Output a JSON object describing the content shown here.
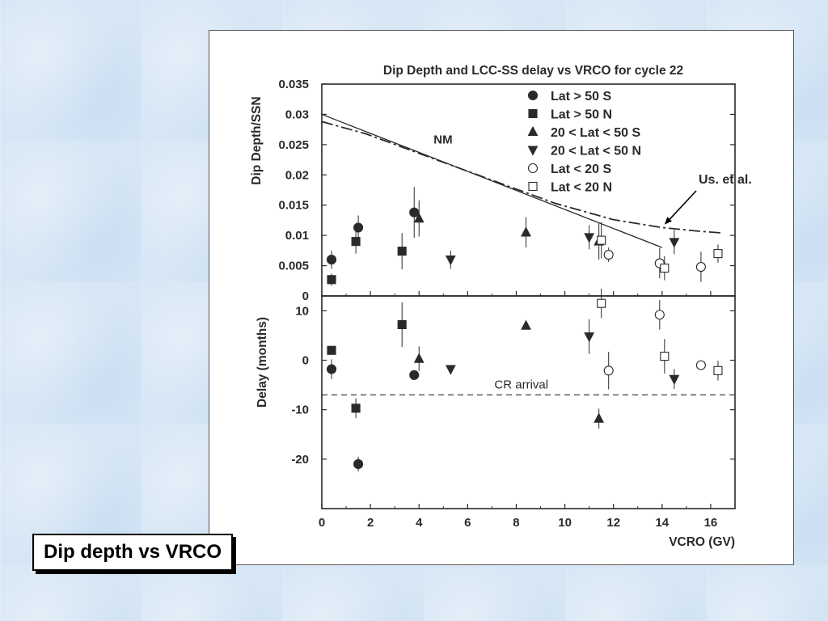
{
  "caption": "Dip depth vs VRCO",
  "colors": {
    "ink": "#2a2a2a",
    "background": "#d6e6f5"
  },
  "chart_data": {
    "type": "scatter",
    "title": "Dip Depth and LCC-SS delay vs VRCO for cycle 22",
    "xlabel": "VCRO (GV)",
    "xlim": [
      0,
      17
    ],
    "xticks": [
      "0",
      "2",
      "4",
      "6",
      "8",
      "10",
      "12",
      "14",
      "16"
    ],
    "top_panel": {
      "ylabel": "Dip Depth/SSN",
      "ylim": [
        0,
        0.035
      ],
      "yticks": [
        "0",
        "0.005",
        "0.01",
        "0.015",
        "0.02",
        "0.025",
        "0.03",
        "0.035"
      ],
      "legend_position": "top-right",
      "series": [
        {
          "name": "Lat > 50 S",
          "marker": "circle-filled",
          "points": [
            {
              "x": 0.4,
              "y": 0.006,
              "e": 0.0015
            },
            {
              "x": 1.5,
              "y": 0.0113,
              "e": 0.002
            },
            {
              "x": 3.8,
              "y": 0.0138,
              "e": 0.0042
            }
          ]
        },
        {
          "name": "Lat > 50 N",
          "marker": "square-filled",
          "points": [
            {
              "x": 0.4,
              "y": 0.0027,
              "e": 0.001
            },
            {
              "x": 1.4,
              "y": 0.009,
              "e": 0.002
            },
            {
              "x": 3.3,
              "y": 0.0074,
              "e": 0.003
            }
          ]
        },
        {
          "name": "20 < Lat < 50 S",
          "marker": "triangle-up",
          "points": [
            {
              "x": 4.0,
              "y": 0.0128,
              "e": 0.003
            },
            {
              "x": 8.4,
              "y": 0.0105,
              "e": 0.0025
            },
            {
              "x": 11.4,
              "y": 0.009,
              "e": 0.003
            }
          ]
        },
        {
          "name": "20 < Lat < 50 N",
          "marker": "triangle-down",
          "points": [
            {
              "x": 5.3,
              "y": 0.006,
              "e": 0.0015
            },
            {
              "x": 11.0,
              "y": 0.0097,
              "e": 0.002
            },
            {
              "x": 14.5,
              "y": 0.0089,
              "e": 0.002
            }
          ]
        },
        {
          "name": "Lat < 20 S",
          "marker": "circle-open",
          "points": [
            {
              "x": 11.8,
              "y": 0.0068,
              "e": 0.0012
            },
            {
              "x": 13.9,
              "y": 0.0054,
              "e": 0.0025
            },
            {
              "x": 15.6,
              "y": 0.0048,
              "e": 0.0025
            }
          ]
        },
        {
          "name": "Lat < 20 N",
          "marker": "square-open",
          "points": [
            {
              "x": 11.5,
              "y": 0.0092,
              "e": 0.003
            },
            {
              "x": 14.1,
              "y": 0.0046,
              "e": 0.002
            },
            {
              "x": 16.3,
              "y": 0.007,
              "e": 0.0015
            }
          ]
        }
      ],
      "lines": [
        {
          "name": "NM",
          "style": "solid",
          "x": [
            0,
            14
          ],
          "y": [
            0.03,
            0.008
          ]
        },
        {
          "name": "Us. et al.",
          "style": "dash-dot",
          "x": [
            0,
            1.8,
            9.6,
            12,
            14,
            15.5,
            16.5
          ],
          "y": [
            0.0288,
            0.0268,
            0.0153,
            0.0126,
            0.0113,
            0.0107,
            0.0104
          ]
        }
      ],
      "annotations": [
        {
          "text": "NM",
          "x": 4.6,
          "y": 0.0252
        },
        {
          "text": "Us. et al.",
          "arrow_to_x": 14.1,
          "arrow_to_y": 0.0118
        }
      ]
    },
    "bottom_panel": {
      "ylabel": "Delay (months)",
      "ylim": [
        -30,
        13
      ],
      "yticks": [
        "-20",
        "-10",
        "0",
        "10"
      ],
      "series": [
        {
          "name": "Lat > 50 S",
          "marker": "circle-filled",
          "points": [
            {
              "x": 0.4,
              "y": -1.8,
              "e": 2
            },
            {
              "x": 1.5,
              "y": -21,
              "e": 1.5
            },
            {
              "x": 3.8,
              "y": -3,
              "e": 0
            }
          ]
        },
        {
          "name": "Lat > 50 N",
          "marker": "square-filled",
          "points": [
            {
              "x": 0.4,
              "y": 2,
              "e": 0
            },
            {
              "x": 1.4,
              "y": -9.7,
              "e": 2
            },
            {
              "x": 3.3,
              "y": 7.2,
              "e": 4.5
            }
          ]
        },
        {
          "name": "20 < Lat < 50 S",
          "marker": "triangle-up",
          "points": [
            {
              "x": 4.0,
              "y": 0.3,
              "e": 2.5
            },
            {
              "x": 8.4,
              "y": 7,
              "e": 0
            },
            {
              "x": 11.4,
              "y": -11.8,
              "e": 2
            }
          ]
        },
        {
          "name": "20 < Lat < 50 N",
          "marker": "triangle-down",
          "points": [
            {
              "x": 5.3,
              "y": -1.8,
              "e": 0
            },
            {
              "x": 11.0,
              "y": 4.8,
              "e": 3.5
            },
            {
              "x": 14.5,
              "y": -3.8,
              "e": 2
            }
          ]
        },
        {
          "name": "Lat < 20 S",
          "marker": "circle-open",
          "points": [
            {
              "x": 11.8,
              "y": -2.1,
              "e": 3.8
            },
            {
              "x": 13.9,
              "y": 9.2,
              "e": 3
            },
            {
              "x": 15.6,
              "y": -1,
              "e": 0
            }
          ]
        },
        {
          "name": "Lat < 20 N",
          "marker": "square-open",
          "points": [
            {
              "x": 11.5,
              "y": 11.5,
              "e": 3
            },
            {
              "x": 14.1,
              "y": 0.8,
              "e": 3.5
            },
            {
              "x": 16.3,
              "y": -2.1,
              "e": 2
            }
          ]
        }
      ],
      "reference_lines": [
        {
          "text": "CR arrival",
          "y": -7,
          "style": "dashed"
        }
      ]
    }
  }
}
